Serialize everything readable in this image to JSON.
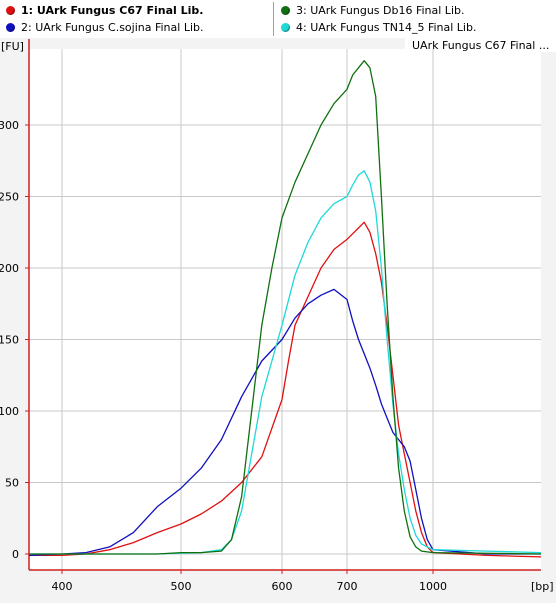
{
  "legend": {
    "items": [
      {
        "label": "1: UArk Fungus C67 Final Lib.",
        "color": "#e01010",
        "selected": true
      },
      {
        "label": "2: UArk Fungus C.sojina Final Lib.",
        "color": "#1010c0",
        "selected": false
      },
      {
        "label": "3: UArk Fungus Db16 Final Lib.",
        "color": "#107010",
        "selected": false
      },
      {
        "label": "4: UArk Fungus TN14_5 Final Lib.",
        "color": "#20d8d8",
        "selected": false
      }
    ]
  },
  "plot_title": "UArk Fungus C67 Final ...",
  "chart_data": {
    "type": "line",
    "ylabel": "[FU]",
    "xlabel": "[bp]",
    "x_ticks": [
      400,
      500,
      600,
      700,
      1000
    ],
    "y_ticks": [
      0,
      50,
      100,
      150,
      200,
      250,
      300
    ],
    "ylim": [
      -10,
      350
    ],
    "grid": true,
    "series": [
      {
        "name": "UArk Fungus C67 Final Lib.",
        "color": "#e01010",
        "points": [
          [
            380,
            -1
          ],
          [
            400,
            -1
          ],
          [
            420,
            0
          ],
          [
            440,
            3
          ],
          [
            460,
            8
          ],
          [
            480,
            15
          ],
          [
            500,
            21
          ],
          [
            520,
            28
          ],
          [
            540,
            37
          ],
          [
            560,
            50
          ],
          [
            580,
            68
          ],
          [
            600,
            108
          ],
          [
            610,
            135
          ],
          [
            620,
            160
          ],
          [
            640,
            180
          ],
          [
            660,
            200
          ],
          [
            680,
            213
          ],
          [
            700,
            220
          ],
          [
            720,
            224
          ],
          [
            740,
            228
          ],
          [
            760,
            232
          ],
          [
            780,
            225
          ],
          [
            800,
            210
          ],
          [
            820,
            190
          ],
          [
            840,
            160
          ],
          [
            860,
            125
          ],
          [
            880,
            90
          ],
          [
            900,
            70
          ],
          [
            920,
            50
          ],
          [
            940,
            30
          ],
          [
            960,
            15
          ],
          [
            980,
            5
          ],
          [
            1000,
            1
          ],
          [
            1040,
            -1
          ],
          [
            1080,
            -2
          ]
        ]
      },
      {
        "name": "UArk Fungus C.sojina Final Lib.",
        "color": "#1010c0",
        "points": [
          [
            380,
            -1
          ],
          [
            400,
            0
          ],
          [
            420,
            1
          ],
          [
            440,
            5
          ],
          [
            460,
            15
          ],
          [
            480,
            33
          ],
          [
            500,
            46
          ],
          [
            520,
            60
          ],
          [
            540,
            80
          ],
          [
            560,
            110
          ],
          [
            580,
            135
          ],
          [
            600,
            150
          ],
          [
            620,
            165
          ],
          [
            640,
            175
          ],
          [
            660,
            181
          ],
          [
            680,
            185
          ],
          [
            700,
            178
          ],
          [
            720,
            163
          ],
          [
            740,
            150
          ],
          [
            760,
            140
          ],
          [
            780,
            130
          ],
          [
            800,
            118
          ],
          [
            820,
            105
          ],
          [
            840,
            95
          ],
          [
            860,
            85
          ],
          [
            880,
            80
          ],
          [
            900,
            75
          ],
          [
            920,
            65
          ],
          [
            940,
            45
          ],
          [
            960,
            25
          ],
          [
            980,
            10
          ],
          [
            1000,
            3
          ],
          [
            1040,
            0
          ],
          [
            1080,
            0
          ]
        ]
      },
      {
        "name": "UArk Fungus Db16 Final Lib.",
        "color": "#107010",
        "points": [
          [
            380,
            0
          ],
          [
            400,
            0
          ],
          [
            420,
            0
          ],
          [
            440,
            0
          ],
          [
            460,
            0
          ],
          [
            480,
            0
          ],
          [
            500,
            1
          ],
          [
            520,
            1
          ],
          [
            540,
            2
          ],
          [
            550,
            10
          ],
          [
            560,
            40
          ],
          [
            570,
            100
          ],
          [
            580,
            160
          ],
          [
            590,
            200
          ],
          [
            600,
            235
          ],
          [
            620,
            260
          ],
          [
            640,
            280
          ],
          [
            660,
            300
          ],
          [
            680,
            315
          ],
          [
            700,
            325
          ],
          [
            720,
            335
          ],
          [
            740,
            340
          ],
          [
            760,
            345
          ],
          [
            780,
            340
          ],
          [
            800,
            320
          ],
          [
            820,
            250
          ],
          [
            840,
            175
          ],
          [
            860,
            110
          ],
          [
            880,
            60
          ],
          [
            900,
            30
          ],
          [
            920,
            12
          ],
          [
            940,
            5
          ],
          [
            960,
            2
          ],
          [
            1000,
            1
          ],
          [
            1080,
            0
          ]
        ]
      },
      {
        "name": "UArk Fungus TN14_5 Final Lib.",
        "color": "#20d8d8",
        "points": [
          [
            380,
            0
          ],
          [
            400,
            0
          ],
          [
            440,
            0
          ],
          [
            480,
            0
          ],
          [
            520,
            1
          ],
          [
            540,
            3
          ],
          [
            550,
            10
          ],
          [
            560,
            30
          ],
          [
            570,
            70
          ],
          [
            580,
            110
          ],
          [
            600,
            160
          ],
          [
            620,
            195
          ],
          [
            640,
            218
          ],
          [
            660,
            235
          ],
          [
            680,
            245
          ],
          [
            700,
            250
          ],
          [
            720,
            258
          ],
          [
            740,
            265
          ],
          [
            760,
            268
          ],
          [
            780,
            260
          ],
          [
            800,
            240
          ],
          [
            820,
            200
          ],
          [
            840,
            150
          ],
          [
            860,
            105
          ],
          [
            880,
            70
          ],
          [
            900,
            45
          ],
          [
            920,
            25
          ],
          [
            940,
            13
          ],
          [
            960,
            7
          ],
          [
            1000,
            3
          ],
          [
            1040,
            2
          ],
          [
            1080,
            1
          ]
        ]
      }
    ]
  }
}
